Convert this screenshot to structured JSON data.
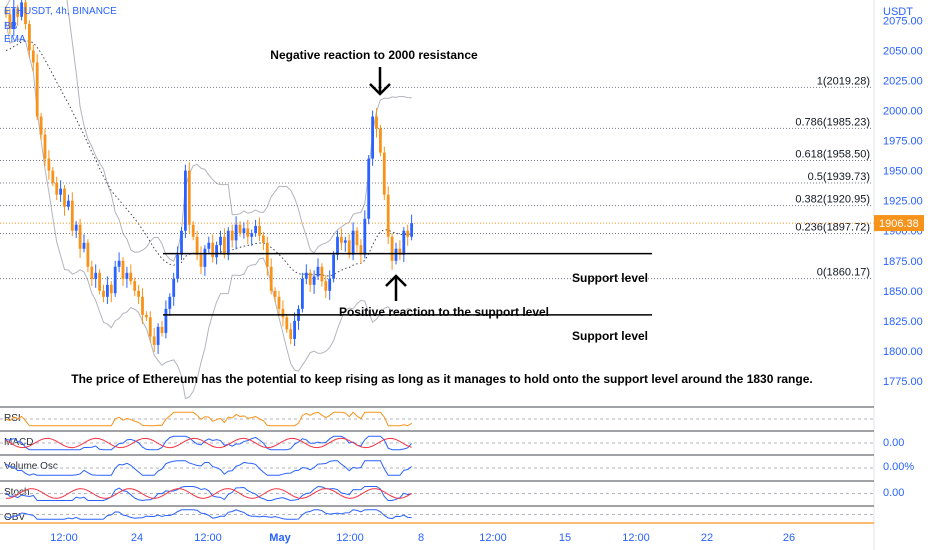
{
  "header": {
    "symbol": "ETHUSDT, 4h, BINANCE",
    "indicators": [
      "BB",
      "EMA"
    ]
  },
  "chart_data": {
    "type": "candlestick",
    "currency_label": "USDT",
    "y_ticks": [
      2075,
      2050,
      2025,
      2000,
      1975,
      1950,
      1925,
      1900,
      1875,
      1850,
      1825,
      1800,
      1775
    ],
    "y_tick_labels": [
      "2075.00",
      "2050.00",
      "2025.00",
      "2000.00",
      "1975.00",
      "1950.00",
      "1925.00",
      "1900.00",
      "1875.00",
      "1850.00",
      "1825.00",
      "1800.00",
      "1775.00"
    ],
    "ylim": [
      1755,
      2092
    ],
    "x_ticks": [
      "12:00",
      "24",
      "12:00",
      "May",
      "12:00",
      "8",
      "12:00",
      "15",
      "12:00",
      "22",
      "26"
    ],
    "last_price": 1906.38,
    "last_price_label": "1906.38",
    "fibonacci": [
      {
        "level": "1",
        "price": 2019.28,
        "label": "1(2019.28)"
      },
      {
        "level": "0.786",
        "price": 1985.23,
        "label": "0.786(1985.23)"
      },
      {
        "level": "0.618",
        "price": 1958.5,
        "label": "0.618(1958.50)"
      },
      {
        "level": "0.5",
        "price": 1939.73,
        "label": "0.5(1939.73)"
      },
      {
        "level": "0.382",
        "price": 1920.95,
        "label": "0.382(1920.95)"
      },
      {
        "level": "0.236",
        "price": 1897.72,
        "label": "0.236(1897.72)"
      },
      {
        "level": "0",
        "price": 1860.17,
        "label": "0(1860.17)"
      }
    ],
    "support_levels": [
      {
        "price": 1881,
        "label": "Support level"
      },
      {
        "price": 1830,
        "label": "Support level"
      }
    ],
    "annotations": {
      "resistance": "Negative reaction to 2000 resistance",
      "support": "Positive reaction to the support level",
      "summary": "The price of Ethereum has the potential to keep rising as long as it manages to hold onto the support level around the 1830 range."
    },
    "closes": [
      2080,
      2068,
      2085,
      2078,
      2090,
      2072,
      2050,
      2040,
      1995,
      1980,
      1960,
      1950,
      1940,
      1930,
      1935,
      1920,
      1925,
      1900,
      1905,
      1885,
      1890,
      1870,
      1860,
      1865,
      1850,
      1845,
      1855,
      1848,
      1870,
      1875,
      1860,
      1865,
      1858,
      1850,
      1845,
      1830,
      1828,
      1812,
      1805,
      1820,
      1815,
      1835,
      1845,
      1860,
      1880,
      1900,
      1950,
      1905,
      1895,
      1880,
      1870,
      1885,
      1890,
      1878,
      1888,
      1895,
      1880,
      1900,
      1892,
      1905,
      1898,
      1902,
      1895,
      1898,
      1904,
      1896,
      1890,
      1870,
      1850,
      1845,
      1835,
      1828,
      1818,
      1810,
      1825,
      1835,
      1860,
      1865,
      1855,
      1862,
      1870,
      1858,
      1850,
      1860,
      1880,
      1895,
      1890,
      1892,
      1880,
      1900,
      1888,
      1880,
      1910,
      1960,
      1995,
      1985,
      1965,
      1930,
      1895,
      1875,
      1885,
      1880,
      1900,
      1895,
      1906.38
    ],
    "panes": [
      {
        "name": "RSI",
        "value_label": ""
      },
      {
        "name": "MACD",
        "value_label": "0.00"
      },
      {
        "name": "Volume Osc",
        "value_label": "0.00%"
      },
      {
        "name": "Stoch",
        "value_label": "0.00"
      },
      {
        "name": "OBV",
        "value_label": ""
      }
    ]
  },
  "colors": {
    "up": "#2962ff",
    "down": "#f7931a",
    "fib_line": "#787b86",
    "bands": "#b2b5be",
    "ema": "#434651",
    "price_badge": "#f7931a",
    "axis_text": "#2962ff"
  }
}
